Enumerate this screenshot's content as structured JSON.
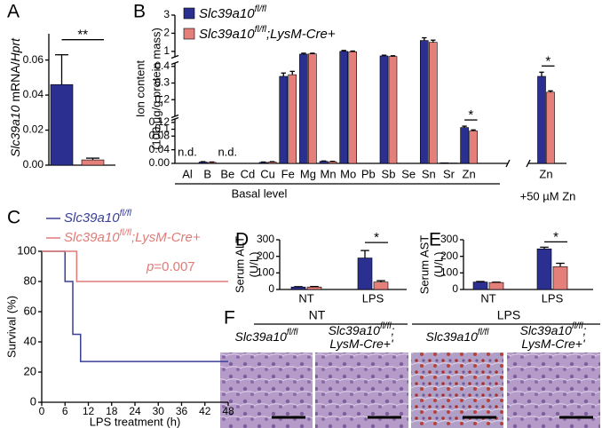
{
  "chart_data": [
    {
      "panel": "A",
      "type": "bar",
      "ylabel": [
        "Slc39a10",
        " mRNA/",
        "Hprt"
      ],
      "categories": [
        null
      ],
      "series": [
        {
          "color": "#2b3090",
          "values": [
            0.046
          ],
          "errors": [
            0.017
          ]
        },
        {
          "color": "#e57f7a",
          "values": [
            0.003
          ],
          "errors": [
            0.001
          ]
        }
      ],
      "ylim": [
        0,
        0.075
      ],
      "yticks": [
        {
          "value": 0,
          "label": "0.00"
        },
        0.02,
        0.04,
        0.06
      ],
      "significance": "**"
    },
    {
      "panel": "B",
      "type": "broken_bar",
      "ylabel": [
        "Ion content",
        "(100 µg/g protein mass)"
      ],
      "categories": [
        "Al",
        "B",
        "Be",
        "Cd",
        "Cu",
        "Fe",
        "Mg",
        "Mn",
        "Mo",
        "Pb",
        "Sb",
        "Se",
        "Sn",
        "Sr",
        "Zn",
        "Zn"
      ],
      "category_notes": [
        "n.d.",
        null,
        "n.d.",
        null,
        null,
        null,
        null,
        null,
        null,
        null,
        null,
        null,
        null,
        null,
        null,
        null
      ],
      "group_labels": [
        "Basal level",
        "+50 µM Zn"
      ],
      "series": [
        {
          "name": [
            "Slc39a10",
            "fl/fl"
          ],
          "color": "#2b3090",
          "values": [
            null,
            0.004,
            null,
            0,
            0.003,
            0.34,
            0.85,
            0.006,
            1.0,
            0,
            0.75,
            0,
            1.6,
            0.002,
            0.105,
            0.34
          ],
          "errors": [
            null,
            0.001,
            null,
            null,
            0.001,
            0.02,
            0.05,
            0.001,
            0.05,
            null,
            0.04,
            null,
            0.15,
            null,
            0.004,
            0.025
          ]
        },
        {
          "name": [
            "Slc39a10",
            "fl/fl",
            ";LysM-Cre+"
          ],
          "color": "#e57f7a",
          "values": [
            null,
            0.003,
            null,
            0,
            0.004,
            0.35,
            0.86,
            0.005,
            0.98,
            0,
            0.72,
            0,
            1.5,
            0.001,
            0.095,
            0.245
          ],
          "errors": [
            null,
            0.001,
            null,
            null,
            0.001,
            0.02,
            0.04,
            0.001,
            0.04,
            null,
            0.04,
            null,
            0.12,
            null,
            0.003,
            0.008
          ]
        }
      ],
      "axis_segments": [
        {
          "ylim": [
            0,
            0.13
          ],
          "yticks": [
            {
              "value": 0,
              "label": "0.00"
            },
            0.04,
            0.08,
            0.12
          ]
        },
        {
          "ylim": [
            0.1,
            0.42
          ],
          "yticks": [
            0.1,
            0.2,
            0.3,
            0.4
          ]
        },
        {
          "ylim": [
            0.7,
            3
          ],
          "yticks": [
            1,
            2,
            3
          ]
        }
      ],
      "significance": [
        null,
        null,
        null,
        null,
        null,
        null,
        null,
        null,
        null,
        null,
        null,
        null,
        null,
        null,
        "*",
        "*"
      ]
    },
    {
      "panel": "C",
      "type": "step",
      "xlabel": "LPS treatment (h)",
      "ylabel": "Survival (%)",
      "xlim": [
        0,
        48
      ],
      "xticks": [
        0,
        6,
        12,
        18,
        24,
        30,
        36,
        42,
        48
      ],
      "ylim": [
        0,
        100
      ],
      "yticks": [
        0,
        20,
        40,
        60,
        80,
        100
      ],
      "series": [
        {
          "name": [
            "Slc39a10",
            "fl/fl"
          ],
          "color": "#3a3f98",
          "x": [
            0,
            6,
            8,
            10,
            48
          ],
          "values": [
            100,
            80,
            45,
            27,
            27
          ]
        },
        {
          "name": [
            "Slc39a10",
            "fl/fl",
            ";LysM-Cre+"
          ],
          "color": "#e07c78",
          "x": [
            0,
            9,
            48
          ],
          "values": [
            100,
            80,
            80
          ]
        }
      ],
      "annotation": [
        "p",
        "=0.007"
      ]
    },
    {
      "panel": "D",
      "type": "bar",
      "ylabel": [
        "Serum ALT",
        "(U/L)"
      ],
      "categories": [
        "NT",
        "LPS"
      ],
      "series": [
        {
          "color": "#2b3090",
          "values": [
            15,
            190
          ],
          "errors": [
            2,
            45
          ]
        },
        {
          "color": "#e57f7a",
          "values": [
            15,
            45
          ],
          "errors": [
            3,
            8
          ]
        }
      ],
      "ylim": [
        0,
        300
      ],
      "yticks": [
        0,
        100,
        200,
        300
      ],
      "significance": [
        null,
        "*"
      ]
    },
    {
      "panel": "E",
      "type": "bar",
      "ylabel": [
        "Serum AST",
        "(U/L)"
      ],
      "categories": [
        "NT",
        "LPS"
      ],
      "series": [
        {
          "color": "#2b3090",
          "values": [
            45,
            245
          ],
          "errors": [
            3,
            10
          ]
        },
        {
          "color": "#e57f7a",
          "values": [
            42,
            138
          ],
          "errors": [
            2,
            20
          ]
        }
      ],
      "ylim": [
        0,
        300
      ],
      "yticks": [
        0,
        100,
        200,
        300
      ],
      "significance": [
        null,
        "*"
      ]
    }
  ],
  "histology": {
    "panel": "F",
    "groups": [
      "NT",
      "LPS"
    ],
    "labels": [
      [
        [
          "Slc39a10",
          "fl/fl"
        ]
      ],
      [
        [
          "Slc39a10",
          "fl/fl",
          ";"
        ],
        [
          "LysM-Cre+'"
        ]
      ],
      [
        [
          "Slc39a10",
          "fl/fl"
        ]
      ],
      [
        [
          "Slc39a10",
          "fl/fl",
          ";"
        ],
        [
          "LysM-Cre+'"
        ]
      ]
    ]
  }
}
